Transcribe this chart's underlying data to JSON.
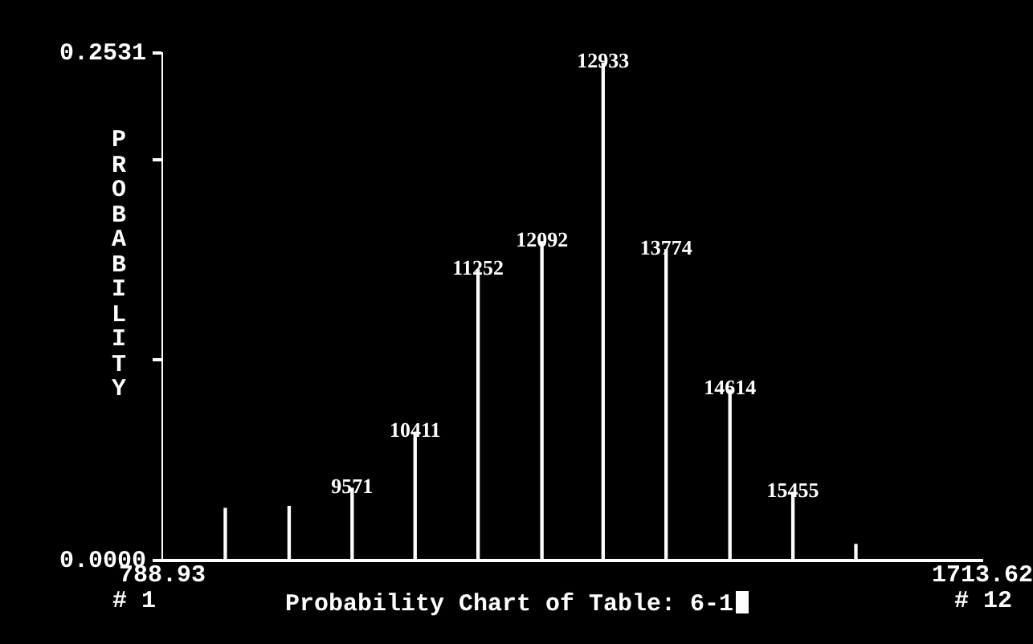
{
  "chart_data": {
    "type": "bar",
    "title": "Probability Chart of Table: 6-1",
    "ylabel": "PROBABILITY",
    "x": [
      860,
      932,
      1003,
      1074,
      1145,
      1217,
      1286,
      1357,
      1429,
      1500,
      1571
    ],
    "values": [
      0.026,
      0.027,
      0.036,
      0.064,
      0.145,
      0.159,
      0.248,
      0.155,
      0.085,
      0.034,
      0.008
    ],
    "color": "#ffffff",
    "xlim": [
      788.93,
      1713.62
    ],
    "xticks": [
      788.93,
      1713.62
    ],
    "ylim": [
      0,
      0.2531
    ],
    "yticks": [
      {
        "value": 0,
        "label": "0.0000"
      },
      {
        "value": 0.1,
        "label": null
      },
      {
        "value": 0.2,
        "label": null
      },
      0.2531
    ],
    "annotations": [
      "# 1",
      "# 12",
      {
        "text": "9571",
        "x": 1003,
        "y": 0.036
      },
      {
        "text": "10411",
        "x": 1074,
        "y": 0.064
      },
      {
        "text": "11252",
        "x": 1145,
        "y": 0.145
      },
      {
        "text": "12092",
        "x": 1217,
        "y": 0.159
      },
      {
        "text": "12933",
        "x": 1286,
        "y": 0.248
      },
      {
        "text": "13774",
        "x": 1357,
        "y": 0.155
      },
      {
        "text": "14614",
        "x": 1429,
        "y": 0.085
      },
      {
        "text": "15455",
        "x": 1500,
        "y": 0.034
      }
    ],
    "grid": false,
    "legend": false
  }
}
